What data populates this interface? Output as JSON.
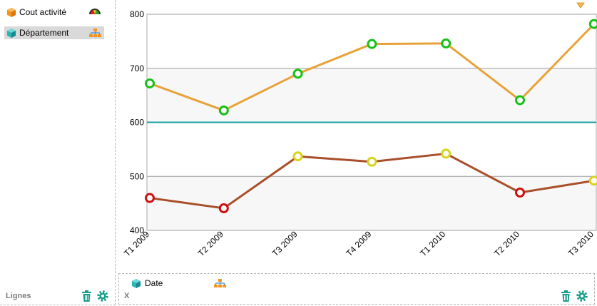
{
  "rows_panel": {
    "fields": [
      {
        "label": "Cout activité",
        "icon": "orange-cube-icon",
        "color": "#f7941d",
        "action_icon": "gauge-icon"
      },
      {
        "label": "Département",
        "icon": "teal-cube-icon",
        "color": "#2bb5b8",
        "action_icon": "hierarchy-icon",
        "selected": true
      }
    ],
    "footer_label": "Lignes",
    "delete_icon": "trash-icon",
    "settings_icon": "gear-icon"
  },
  "x_panel": {
    "field_label": "Date",
    "field_icon": "teal-cube-icon",
    "action_icon": "hierarchy-icon",
    "footer_label": "X",
    "delete_icon": "trash-icon",
    "settings_icon": "gear-icon"
  },
  "colors": {
    "series_1": "#e8a23a",
    "series_2": "#a84f2a",
    "reference_line": "#17a2a2",
    "marker_green": "#16c216",
    "marker_yellow": "#d9d21c",
    "marker_red": "#cc1111",
    "plot_bg": "#f7f7f7",
    "tool_green": "#1a9e8a"
  },
  "chart_data": {
    "type": "line",
    "categories": [
      "T1 2009",
      "T2 2009",
      "T3 2009",
      "T4 2009",
      "T1 2010",
      "T2 2010",
      "T3 2010"
    ],
    "series": [
      {
        "values": [
          672,
          622,
          690,
          745,
          746,
          641,
          782
        ],
        "marker_colors": [
          "green",
          "green",
          "green",
          "green",
          "green",
          "green",
          "green"
        ]
      },
      {
        "values": [
          460,
          441,
          537,
          527,
          542,
          470,
          492
        ],
        "marker_colors": [
          "red",
          "red",
          "yellow",
          "yellow",
          "yellow",
          "red",
          "yellow"
        ]
      }
    ],
    "reference_line": 600,
    "yticks": [
      400,
      500,
      600,
      700,
      800
    ],
    "ylim": [
      400,
      800
    ],
    "grid": "horizontal",
    "band_fill": true
  }
}
